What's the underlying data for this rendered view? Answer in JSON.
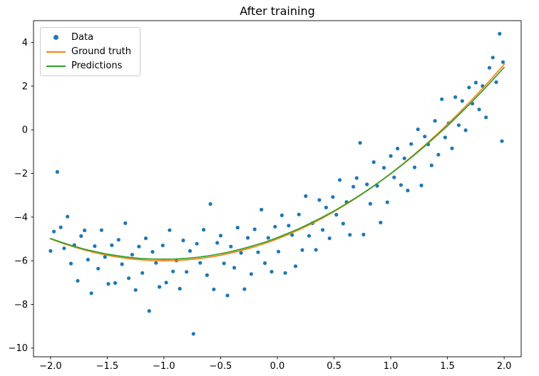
{
  "title": "After training",
  "colors": {
    "data_points": "#1f77b4",
    "ground_truth": "#ff7f0e",
    "predictions": "#2ca02c",
    "axis": "#000000",
    "legend_border": "#cccccc",
    "background": "#ffffff"
  },
  "legend": {
    "items": [
      {
        "label": "Data",
        "type": "marker",
        "color": "#1f77b4"
      },
      {
        "label": "Ground truth",
        "type": "line",
        "color": "#ff7f0e"
      },
      {
        "label": "Predictions",
        "type": "line",
        "color": "#2ca02c"
      }
    ]
  },
  "chart_data": {
    "type": "scatter",
    "title": "After training",
    "xlabel": "",
    "ylabel": "",
    "grid": false,
    "legend_position": "upper left",
    "xlim": [
      -2.15,
      2.15
    ],
    "ylim": [
      -10.4,
      5.0
    ],
    "x_ticks": {
      "values": [
        -2.0,
        -1.5,
        -1.0,
        -0.5,
        0.0,
        0.5,
        1.0,
        1.5,
        2.0
      ],
      "labels": [
        "−2.0",
        "−1.5",
        "−1.0",
        "−0.5",
        "0.0",
        "0.5",
        "1.0",
        "1.5",
        "2.0"
      ]
    },
    "y_ticks": {
      "values": [
        -10,
        -8,
        -6,
        -4,
        -2,
        0,
        2,
        4
      ],
      "labels": [
        "−10",
        "−8",
        "−6",
        "−4",
        "−2",
        "0",
        "2",
        "4"
      ]
    },
    "series": [
      {
        "name": "Data",
        "type": "scatter",
        "color": "#1f77b4",
        "points": [
          [
            -2.0,
            -5.55
          ],
          [
            -1.97,
            -4.66
          ],
          [
            -1.94,
            -1.93
          ],
          [
            -1.91,
            -4.47
          ],
          [
            -1.88,
            -5.43
          ],
          [
            -1.85,
            -3.98
          ],
          [
            -1.82,
            -6.13
          ],
          [
            -1.79,
            -5.28
          ],
          [
            -1.76,
            -6.92
          ],
          [
            -1.73,
            -4.87
          ],
          [
            -1.7,
            -4.61
          ],
          [
            -1.67,
            -5.95
          ],
          [
            -1.64,
            -7.49
          ],
          [
            -1.61,
            -5.33
          ],
          [
            -1.58,
            -6.36
          ],
          [
            -1.55,
            -4.6
          ],
          [
            -1.52,
            -5.83
          ],
          [
            -1.49,
            -7.06
          ],
          [
            -1.46,
            -5.29
          ],
          [
            -1.43,
            -7.02
          ],
          [
            -1.4,
            -5.04
          ],
          [
            -1.37,
            -6.16
          ],
          [
            -1.34,
            -4.28
          ],
          [
            -1.31,
            -6.8
          ],
          [
            -1.28,
            -5.72
          ],
          [
            -1.25,
            -7.34
          ],
          [
            -1.22,
            -5.35
          ],
          [
            -1.19,
            -6.56
          ],
          [
            -1.16,
            -4.97
          ],
          [
            -1.13,
            -8.3
          ],
          [
            -1.1,
            -5.59
          ],
          [
            -1.07,
            -6.1
          ],
          [
            -1.04,
            -7.2
          ],
          [
            -1.01,
            -5.3
          ],
          [
            -0.98,
            -7.0
          ],
          [
            -0.95,
            -4.6
          ],
          [
            -0.92,
            -6.49
          ],
          [
            -0.89,
            -5.99
          ],
          [
            -0.86,
            -7.28
          ],
          [
            -0.83,
            -5.07
          ],
          [
            -0.8,
            -6.51
          ],
          [
            -0.77,
            -5.55
          ],
          [
            -0.74,
            -9.35
          ],
          [
            -0.71,
            -5.22
          ],
          [
            -0.68,
            -6.1
          ],
          [
            -0.65,
            -4.58
          ],
          [
            -0.62,
            -6.66
          ],
          [
            -0.59,
            -3.4
          ],
          [
            -0.56,
            -7.31
          ],
          [
            -0.53,
            -5.18
          ],
          [
            -0.5,
            -4.85
          ],
          [
            -0.47,
            -6.12
          ],
          [
            -0.44,
            -7.59
          ],
          [
            -0.41,
            -5.35
          ],
          [
            -0.38,
            -6.32
          ],
          [
            -0.35,
            -4.48
          ],
          [
            -0.32,
            -5.64
          ],
          [
            -0.29,
            -7.3
          ],
          [
            -0.26,
            -4.95
          ],
          [
            -0.23,
            -6.61
          ],
          [
            -0.2,
            -4.56
          ],
          [
            -0.17,
            -5.61
          ],
          [
            -0.14,
            -3.66
          ],
          [
            -0.11,
            -6.11
          ],
          [
            -0.08,
            -4.95
          ],
          [
            -0.05,
            -6.5
          ],
          [
            -0.02,
            -4.44
          ],
          [
            0.01,
            -5.58
          ],
          [
            0.04,
            -3.92
          ],
          [
            0.07,
            -6.56
          ],
          [
            0.1,
            -4.39
          ],
          [
            0.13,
            -4.82
          ],
          [
            0.16,
            -6.25
          ],
          [
            0.19,
            -3.88
          ],
          [
            0.22,
            -5.51
          ],
          [
            0.25,
            -3.04
          ],
          [
            0.28,
            -4.86
          ],
          [
            0.31,
            -4.28
          ],
          [
            0.34,
            -5.5
          ],
          [
            0.37,
            -3.22
          ],
          [
            0.4,
            -4.59
          ],
          [
            0.43,
            -3.56
          ],
          [
            0.46,
            -4.97
          ],
          [
            0.49,
            -3.08
          ],
          [
            0.52,
            -3.89
          ],
          [
            0.55,
            -2.3
          ],
          [
            0.58,
            -4.3
          ],
          [
            0.61,
            -3.31
          ],
          [
            0.64,
            -4.81
          ],
          [
            0.67,
            -2.61
          ],
          [
            0.7,
            -2.21
          ],
          [
            0.73,
            -0.6
          ],
          [
            0.76,
            -4.8
          ],
          [
            0.79,
            -2.5
          ],
          [
            0.82,
            -3.39
          ],
          [
            0.85,
            -1.48
          ],
          [
            0.88,
            -2.57
          ],
          [
            0.91,
            -4.25
          ],
          [
            0.94,
            -1.74
          ],
          [
            0.97,
            -3.32
          ],
          [
            1.0,
            -1.2
          ],
          [
            1.03,
            -2.18
          ],
          [
            1.06,
            -0.86
          ],
          [
            1.09,
            -2.53
          ],
          [
            1.12,
            -1.31
          ],
          [
            1.15,
            -2.78
          ],
          [
            1.18,
            -0.65
          ],
          [
            1.21,
            -1.72
          ],
          [
            1.24,
            0.02
          ],
          [
            1.27,
            -2.55
          ],
          [
            1.3,
            -0.31
          ],
          [
            1.33,
            -0.67
          ],
          [
            1.36,
            -1.63
          ],
          [
            1.39,
            0.41
          ],
          [
            1.42,
            -1.14
          ],
          [
            1.45,
            1.4
          ],
          [
            1.48,
            -0.35
          ],
          [
            1.51,
            0.3
          ],
          [
            1.54,
            -0.85
          ],
          [
            1.57,
            1.5
          ],
          [
            1.6,
            0.21
          ],
          [
            1.63,
            1.32
          ],
          [
            1.66,
            -0.02
          ],
          [
            1.69,
            1.94
          ],
          [
            1.72,
            1.2
          ],
          [
            1.75,
            2.16
          ],
          [
            1.78,
            0.93
          ],
          [
            1.81,
            2.0
          ],
          [
            1.84,
            0.57
          ],
          [
            1.87,
            2.84
          ],
          [
            1.9,
            3.31
          ],
          [
            1.93,
            2.18
          ],
          [
            1.96,
            4.4
          ],
          [
            1.98,
            -0.52
          ],
          [
            1.99,
            3.1
          ]
        ]
      },
      {
        "name": "Ground truth",
        "type": "line",
        "color": "#ff7f0e",
        "points": [
          [
            -2,
            -5.0
          ],
          [
            -1.9,
            -5.19
          ],
          [
            -1.8,
            -5.36
          ],
          [
            -1.7,
            -5.51
          ],
          [
            -1.6,
            -5.64
          ],
          [
            -1.5,
            -5.75
          ],
          [
            -1.4,
            -5.84
          ],
          [
            -1.3,
            -5.91
          ],
          [
            -1.2,
            -5.96
          ],
          [
            -1.1,
            -5.99
          ],
          [
            -1,
            -6.0
          ],
          [
            -0.9,
            -5.99
          ],
          [
            -0.8,
            -5.96
          ],
          [
            -0.7,
            -5.91
          ],
          [
            -0.6,
            -5.84
          ],
          [
            -0.5,
            -5.75
          ],
          [
            -0.4,
            -5.64
          ],
          [
            -0.3,
            -5.51
          ],
          [
            -0.2,
            -5.36
          ],
          [
            -0.1,
            -5.19
          ],
          [
            0,
            -5.0
          ],
          [
            0.1,
            -4.79
          ],
          [
            0.2,
            -4.56
          ],
          [
            0.3,
            -4.31
          ],
          [
            0.4,
            -4.04
          ],
          [
            0.5,
            -3.75
          ],
          [
            0.6,
            -3.44
          ],
          [
            0.7,
            -3.11
          ],
          [
            0.8,
            -2.76
          ],
          [
            0.9,
            -2.39
          ],
          [
            1,
            -2.0
          ],
          [
            1.1,
            -1.59
          ],
          [
            1.2,
            -1.16
          ],
          [
            1.3,
            -0.71
          ],
          [
            1.4,
            -0.24
          ],
          [
            1.5,
            0.25
          ],
          [
            1.6,
            0.76
          ],
          [
            1.7,
            1.29
          ],
          [
            1.8,
            1.84
          ],
          [
            1.9,
            2.41
          ],
          [
            2,
            3.0
          ]
        ]
      },
      {
        "name": "Predictions",
        "type": "line",
        "color": "#2ca02c",
        "points": [
          [
            -2,
            -4.98
          ],
          [
            -1.9,
            -5.16
          ],
          [
            -1.8,
            -5.33
          ],
          [
            -1.7,
            -5.47
          ],
          [
            -1.6,
            -5.59
          ],
          [
            -1.5,
            -5.7
          ],
          [
            -1.4,
            -5.78
          ],
          [
            -1.3,
            -5.85
          ],
          [
            -1.2,
            -5.9
          ],
          [
            -1.1,
            -5.92
          ],
          [
            -1,
            -5.93
          ],
          [
            -0.9,
            -5.92
          ],
          [
            -0.8,
            -5.89
          ],
          [
            -0.7,
            -5.84
          ],
          [
            -0.6,
            -5.77
          ],
          [
            -0.5,
            -5.68
          ],
          [
            -0.4,
            -5.57
          ],
          [
            -0.3,
            -5.44
          ],
          [
            -0.2,
            -5.29
          ],
          [
            -0.1,
            -5.13
          ],
          [
            0,
            -4.94
          ],
          [
            0.1,
            -4.73
          ],
          [
            0.2,
            -4.51
          ],
          [
            0.3,
            -4.26
          ],
          [
            0.4,
            -4.0
          ],
          [
            0.5,
            -3.72
          ],
          [
            0.6,
            -3.41
          ],
          [
            0.7,
            -3.09
          ],
          [
            0.8,
            -2.75
          ],
          [
            0.9,
            -2.39
          ],
          [
            1,
            -2.01
          ],
          [
            1.1,
            -1.61
          ],
          [
            1.2,
            -1.19
          ],
          [
            1.3,
            -0.75
          ],
          [
            1.4,
            -0.29
          ],
          [
            1.5,
            0.18
          ],
          [
            1.6,
            0.68
          ],
          [
            1.7,
            1.2
          ],
          [
            1.8,
            1.73
          ],
          [
            1.9,
            2.29
          ],
          [
            2,
            2.86
          ]
        ]
      }
    ]
  }
}
